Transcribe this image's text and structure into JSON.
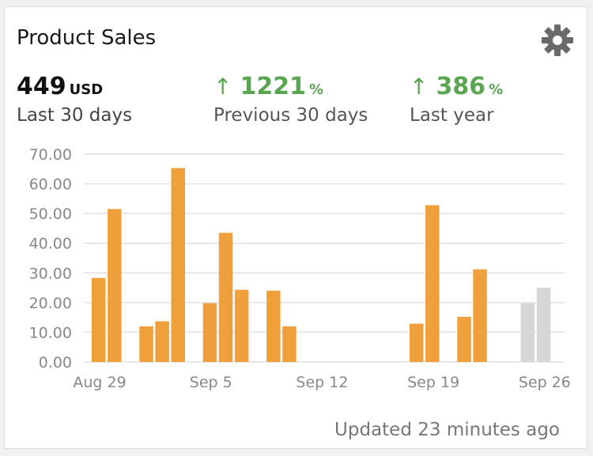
{
  "widget": {
    "title": "Product Sales",
    "settings_icon": "gear-icon",
    "updated_text": "Updated 23 minutes ago"
  },
  "metrics": [
    {
      "value": "449",
      "unit": "USD",
      "label": "Last 30 days",
      "trend_icon": "",
      "color": "#111111"
    },
    {
      "value": "1221",
      "unit": "%",
      "label": "Previous 30 days",
      "trend_icon": "arrow-up-icon",
      "color": "#5aa552"
    },
    {
      "value": "386",
      "unit": "%",
      "label": "Last year",
      "trend_icon": "arrow-up-icon",
      "color": "#5aa552"
    }
  ],
  "chart_data": {
    "type": "bar",
    "title": "",
    "xlabel": "",
    "ylabel": "",
    "ylim": [
      0,
      70
    ],
    "yticks": [
      "0.00",
      "10.00",
      "20.00",
      "30.00",
      "40.00",
      "50.00",
      "60.00",
      "70.00"
    ],
    "xticks": [
      {
        "label": "Aug 29",
        "day": 0
      },
      {
        "label": "Sep 5",
        "day": 7
      },
      {
        "label": "Sep 12",
        "day": 14
      },
      {
        "label": "Sep 19",
        "day": 21
      },
      {
        "label": "Sep 26",
        "day": 28
      }
    ],
    "grid": true,
    "colors": {
      "actual": "#f0a03a",
      "projected": "#d6d6d6"
    },
    "bars": [
      {
        "day": 0,
        "value": 28.3,
        "projected": false
      },
      {
        "day": 1,
        "value": 51.5,
        "projected": false
      },
      {
        "day": 3,
        "value": 12.0,
        "projected": false
      },
      {
        "day": 4,
        "value": 13.7,
        "projected": false
      },
      {
        "day": 5,
        "value": 65.3,
        "projected": false
      },
      {
        "day": 7,
        "value": 19.8,
        "projected": false
      },
      {
        "day": 8,
        "value": 43.5,
        "projected": false
      },
      {
        "day": 9,
        "value": 24.3,
        "projected": false
      },
      {
        "day": 11,
        "value": 24.0,
        "projected": false
      },
      {
        "day": 12,
        "value": 12.0,
        "projected": false
      },
      {
        "day": 20,
        "value": 12.9,
        "projected": false
      },
      {
        "day": 21,
        "value": 52.8,
        "projected": false
      },
      {
        "day": 23,
        "value": 15.2,
        "projected": false
      },
      {
        "day": 24,
        "value": 31.2,
        "projected": false
      },
      {
        "day": 27,
        "value": 19.8,
        "projected": true
      },
      {
        "day": 28,
        "value": 25.0,
        "projected": true
      }
    ]
  }
}
